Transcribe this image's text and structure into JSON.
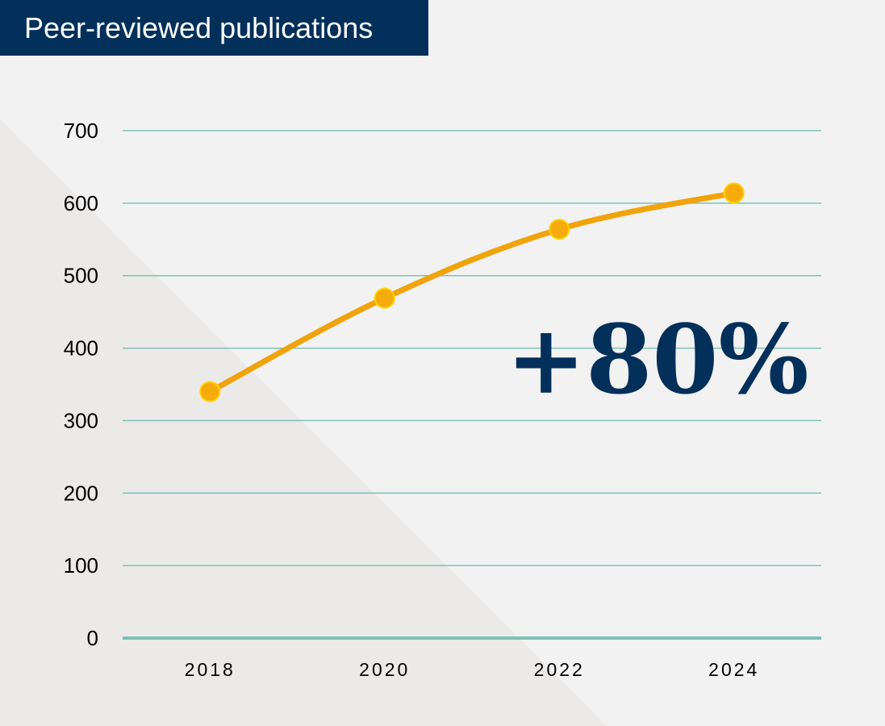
{
  "title": "Peer-reviewed publications",
  "annotation": "+80%",
  "colors": {
    "title_bg": "#03305a",
    "line": "#f0a30a",
    "marker": "#f5ab0c",
    "marker_edge": "#ffd200",
    "grid": "#7cc1b6",
    "annotation": "#03305a",
    "background": "#f2f2f3",
    "background_shade": "#ece9e9"
  },
  "chart_data": {
    "type": "line",
    "title": "Peer-reviewed publications",
    "xlabel": "",
    "ylabel": "",
    "categories": [
      "2018",
      "2020",
      "2022",
      "2024"
    ],
    "series": [
      {
        "values": [
          340,
          469,
          564,
          614
        ]
      }
    ],
    "ylim": [
      0,
      700
    ],
    "yticks": [
      "0",
      "100",
      "200",
      "300",
      "400",
      "500",
      "600",
      "700"
    ],
    "grid": true,
    "legend": "none",
    "annotations": [
      "+80%"
    ]
  }
}
